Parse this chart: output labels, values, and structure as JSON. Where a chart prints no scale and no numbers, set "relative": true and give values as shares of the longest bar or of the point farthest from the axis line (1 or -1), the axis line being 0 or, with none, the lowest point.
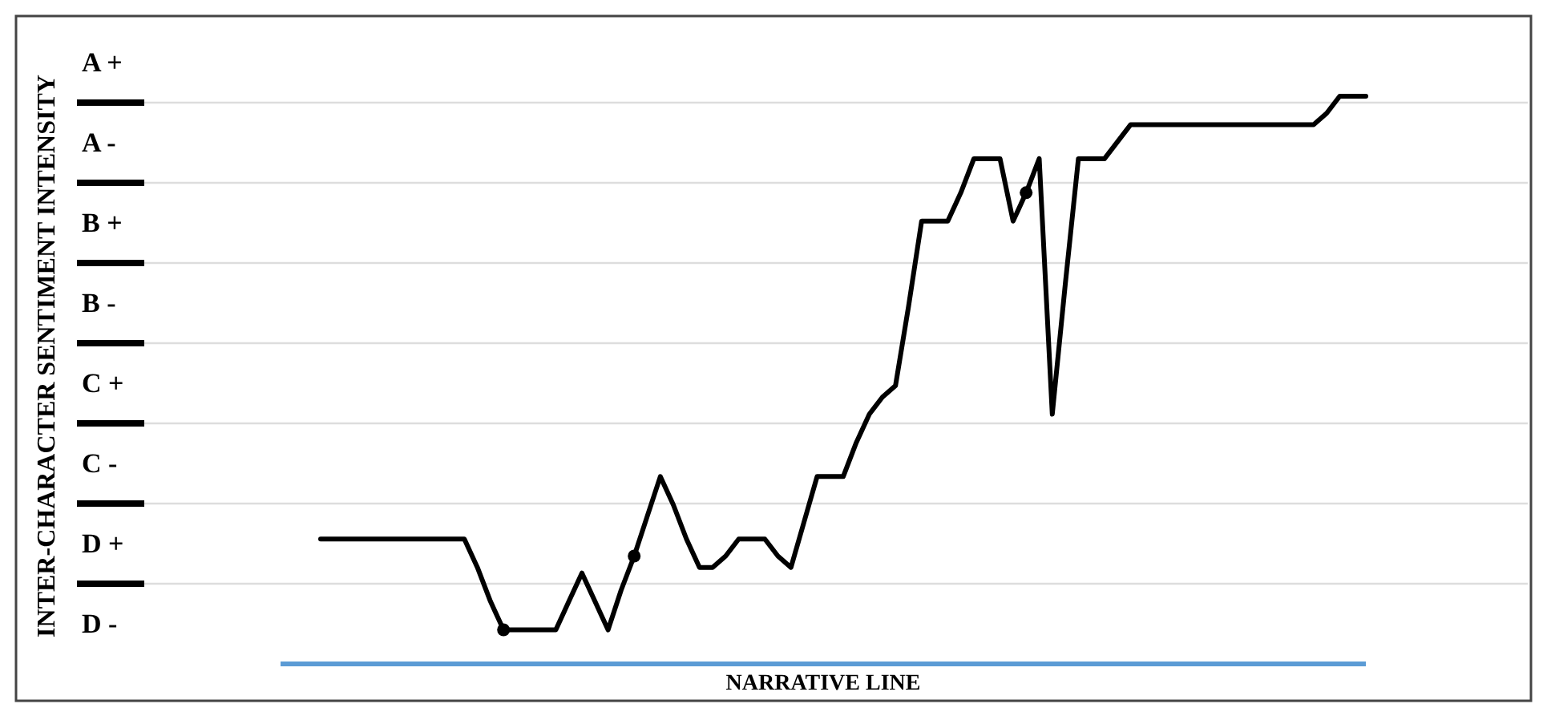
{
  "chart_data": {
    "type": "line",
    "xlabel": "NARRATIVE LINE",
    "categories": [
      null,
      null,
      null,
      null,
      null,
      null,
      null,
      null,
      null,
      null,
      null,
      null,
      null,
      null,
      null,
      null,
      null,
      null,
      null,
      null,
      null,
      null,
      null,
      null,
      null,
      null,
      null,
      null,
      null,
      null,
      null,
      null,
      null,
      null,
      null,
      null,
      null,
      null,
      null,
      null,
      null,
      null,
      null,
      null,
      null,
      null,
      null,
      null,
      null,
      null,
      null,
      null,
      null,
      null,
      null,
      null,
      null,
      null,
      null,
      null,
      null,
      null,
      null,
      null,
      null,
      null,
      null,
      null,
      null,
      null,
      null,
      null,
      null,
      null,
      null,
      null,
      null,
      null,
      null,
      null,
      null
    ],
    "relative": true,
    "annotations": [
      "INTER-CHARACTER SENTIMENT INTENSITY",
      "A +",
      "A -",
      "B +",
      "B -",
      "C +",
      "C -",
      "D +",
      "D -"
    ],
    "grid": "y",
    "line_style": "solid",
    "series": [
      {
        "color": "#000000",
        "values": [
          0.22,
          0.22,
          0.22,
          0.22,
          0.22,
          0.22,
          0.22,
          0.22,
          0.22,
          0.22,
          0.22,
          0.22,
          0.17,
          0.11,
          0.06,
          0.06,
          0.06,
          0.06,
          0.06,
          0.11,
          0.16,
          0.11,
          0.06,
          0.13,
          0.19,
          0.26,
          0.33,
          0.28,
          0.22,
          0.17,
          0.17,
          0.19,
          0.22,
          0.22,
          0.22,
          0.19,
          0.17,
          0.25,
          0.33,
          0.33,
          0.33,
          0.39,
          0.44,
          0.47,
          0.49,
          0.63,
          0.78,
          0.78,
          0.78,
          0.83,
          0.89,
          0.89,
          0.89,
          0.78,
          0.83,
          0.89,
          0.44,
          0.67,
          0.89,
          0.89,
          0.89,
          0.92,
          0.95,
          0.95,
          0.95,
          0.95,
          0.95,
          0.95,
          0.95,
          0.95,
          0.95,
          0.95,
          0.95,
          0.95,
          0.95,
          0.95,
          0.95,
          0.97,
          1,
          1,
          1
        ]
      }
    ]
  }
}
